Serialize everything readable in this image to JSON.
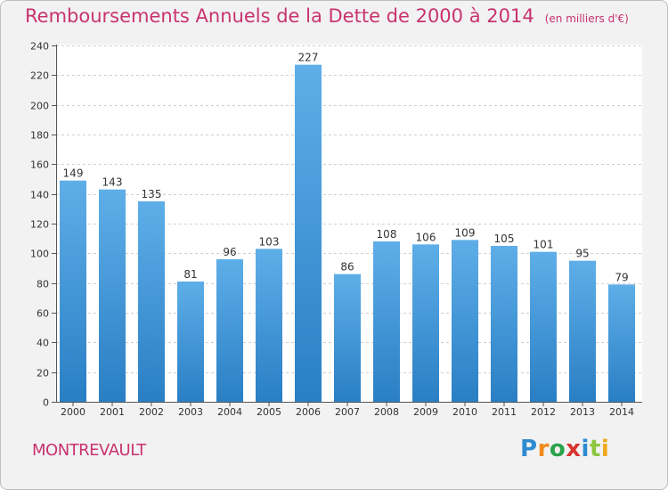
{
  "title": "Remboursements Annuels de la Dette de 2000 à 2014",
  "unit": "(en milliers d'€)",
  "place": "MONTREVAULT",
  "logo": [
    "P",
    "r",
    "o",
    "x",
    "i",
    "t",
    "i"
  ],
  "colors": {
    "title": "#c8336e",
    "bar_top": "#5eaee8",
    "bar_bottom": "#2a7fc4",
    "plot_bg": "#ffffff",
    "grid": "#cfcfcf"
  },
  "chart_data": {
    "type": "bar",
    "categories": [
      "2000",
      "2001",
      "2002",
      "2003",
      "2004",
      "2005",
      "2006",
      "2007",
      "2008",
      "2009",
      "2010",
      "2011",
      "2012",
      "2013",
      "2014"
    ],
    "values": [
      149,
      143,
      135,
      81,
      96,
      103,
      227,
      86,
      108,
      106,
      109,
      105,
      101,
      95,
      79
    ],
    "ylim": [
      0,
      240
    ],
    "yticks": [
      0,
      20,
      40,
      60,
      80,
      100,
      120,
      140,
      160,
      180,
      200,
      220,
      240
    ],
    "grid": true,
    "data_labels": true
  }
}
